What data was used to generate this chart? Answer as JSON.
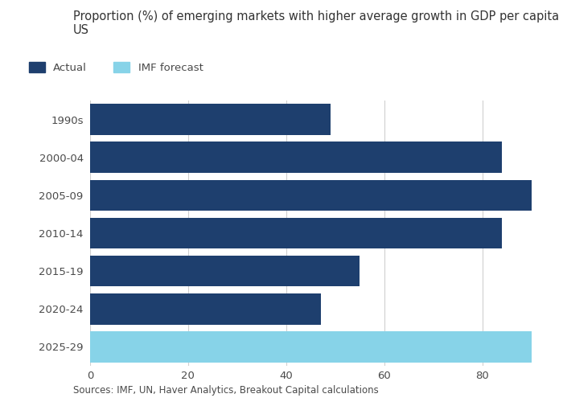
{
  "title": "Proportion (%) of emerging markets with higher average growth in GDP per capita than the\nUS",
  "categories": [
    "1990s",
    "2000-04",
    "2005-09",
    "2010-14",
    "2015-19",
    "2020-24",
    "2025-29"
  ],
  "values": [
    49,
    84,
    90,
    84,
    55,
    47,
    90
  ],
  "colors": [
    "#1e3f6e",
    "#1e3f6e",
    "#1e3f6e",
    "#1e3f6e",
    "#1e3f6e",
    "#1e3f6e",
    "#87d3e8"
  ],
  "actual_color": "#1e3f6e",
  "forecast_color": "#87d3e8",
  "legend_labels": [
    "Actual",
    "IMF forecast"
  ],
  "xlim": [
    0,
    93
  ],
  "xticks": [
    0,
    20,
    40,
    60,
    80
  ],
  "source_text": "Sources: IMF, UN, Haver Analytics, Breakout Capital calculations",
  "title_fontsize": 10.5,
  "tick_fontsize": 9.5,
  "legend_fontsize": 9.5,
  "source_fontsize": 8.5,
  "bar_height": 0.82,
  "background_color": "#ffffff",
  "grid_color": "#d0d0d0",
  "text_color": "#4a4a4a"
}
